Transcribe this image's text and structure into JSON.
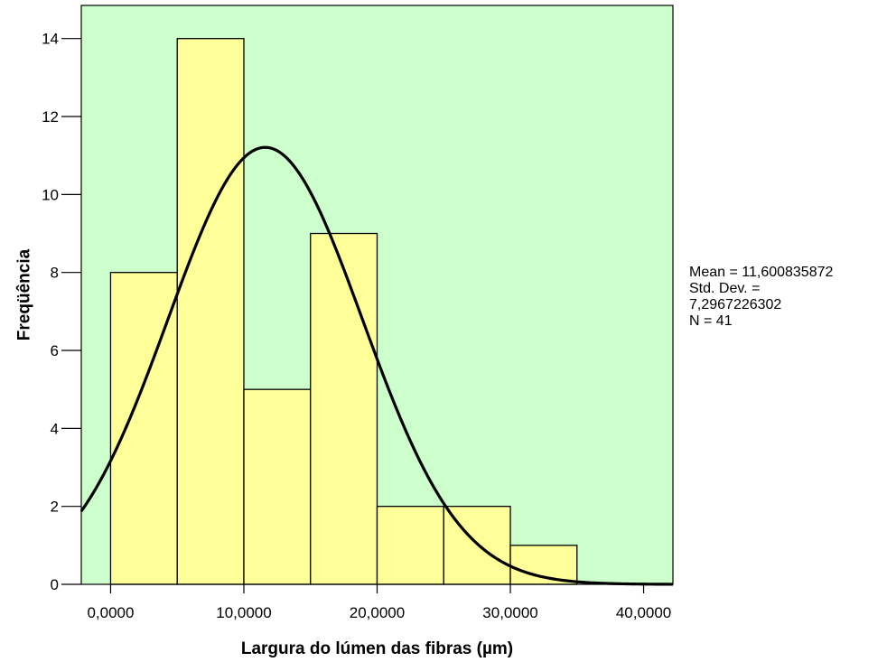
{
  "chart_data": {
    "type": "bar",
    "subtype": "histogram",
    "title": "",
    "xlabel": "Largura do lúmen das fibras (µm)",
    "ylabel": "Freqüência",
    "bins": [
      {
        "start": 0,
        "end": 5,
        "count": 8
      },
      {
        "start": 5,
        "end": 10,
        "count": 14
      },
      {
        "start": 10,
        "end": 15,
        "count": 5
      },
      {
        "start": 15,
        "end": 20,
        "count": 9
      },
      {
        "start": 20,
        "end": 25,
        "count": 2
      },
      {
        "start": 25,
        "end": 30,
        "count": 2
      },
      {
        "start": 30,
        "end": 35,
        "count": 1
      }
    ],
    "xlim": [
      -2.2,
      42.2
    ],
    "ylim": [
      0,
      14.85
    ],
    "x_ticks": [
      {
        "value": 0,
        "label": "0,0000"
      },
      {
        "value": 10,
        "label": "10,0000"
      },
      {
        "value": 20,
        "label": "20,0000"
      },
      {
        "value": 30,
        "label": "30,0000"
      },
      {
        "value": 40,
        "label": "40,0000"
      }
    ],
    "y_ticks": [
      {
        "value": 0,
        "label": "0"
      },
      {
        "value": 2,
        "label": "2"
      },
      {
        "value": 4,
        "label": "4"
      },
      {
        "value": 6,
        "label": "6"
      },
      {
        "value": 8,
        "label": "8"
      },
      {
        "value": 10,
        "label": "10"
      },
      {
        "value": 12,
        "label": "12"
      },
      {
        "value": 14,
        "label": "14"
      }
    ],
    "normal_curve": {
      "mean": 11.600835872,
      "std": 7.2967226302,
      "n": 41,
      "bin_width": 5
    },
    "grid": false,
    "legend": "none",
    "stats_text": {
      "mean": "Mean = 11,600835872",
      "std_label": "Std. Dev. =",
      "std_value": "7,2967226302",
      "n": "N = 41"
    }
  },
  "colors": {
    "plot_background": "#ccffcc",
    "bar_fill": "#ffff99",
    "bar_stroke": "#000000",
    "curve": "#000000"
  }
}
